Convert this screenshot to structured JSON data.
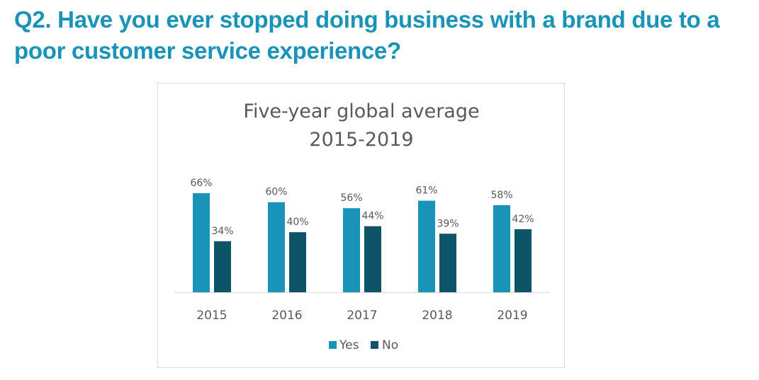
{
  "page": {
    "title": "Q2. Have you ever stopped doing business with a brand due to a poor customer service experience?"
  },
  "colors": {
    "title": "#1a93b9",
    "yes": "#1a93b9",
    "no": "#0d5469",
    "text": "#595959",
    "axis": "#d9d9d9"
  },
  "chart_data": {
    "type": "bar",
    "title_lines": [
      "Five-year global average",
      "2015-2019"
    ],
    "categories": [
      "2015",
      "2016",
      "2017",
      "2018",
      "2019"
    ],
    "series": [
      {
        "name": "Yes",
        "values": [
          66,
          60,
          56,
          61,
          58
        ],
        "labels": [
          "66%",
          "60%",
          "56%",
          "61%",
          "58%"
        ]
      },
      {
        "name": "No",
        "values": [
          34,
          40,
          44,
          39,
          42
        ],
        "labels": [
          "34%",
          "40%",
          "44%",
          "39%",
          "42%"
        ]
      }
    ],
    "ylim": [
      0,
      70
    ],
    "grid": false,
    "legend": "bottom"
  }
}
